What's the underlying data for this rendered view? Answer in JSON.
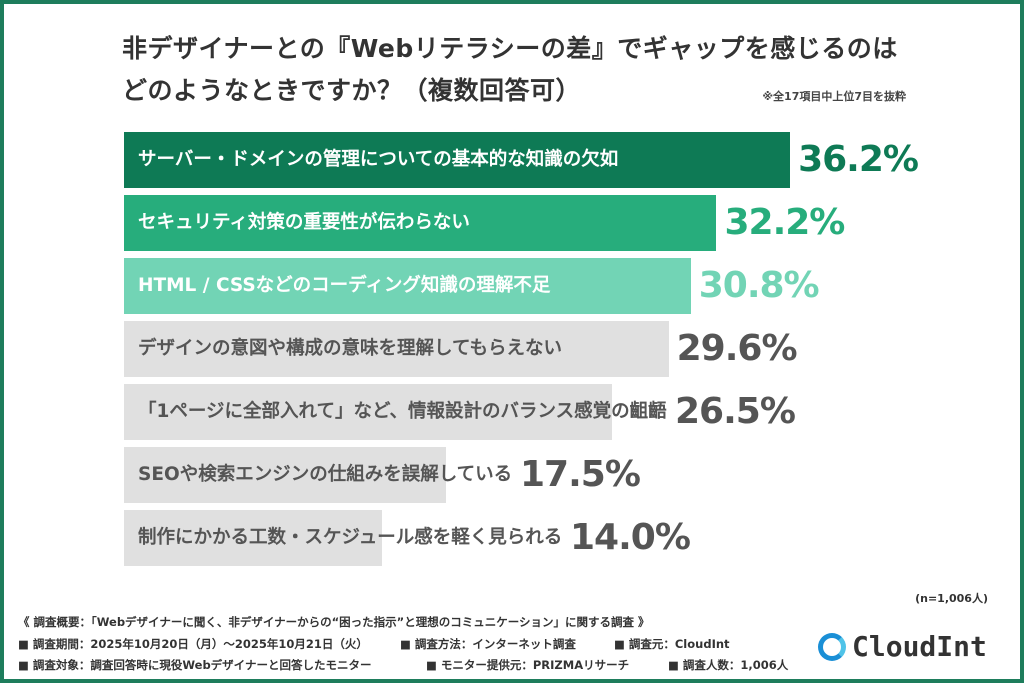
{
  "chart_data": {
    "type": "bar",
    "orientation": "horizontal",
    "title": "非デザイナーとの『Webリテラシーの差』でギャップを感じるのはどのようなときですか？（複数回答可）",
    "title_line1": "非デザイナーとの『Webリテラシーの差』でギャップを感じるのは",
    "title_line2": "どのようなときですか？（複数回答可）",
    "subtitle": "※全17項目中上位7目を抜粋",
    "unit": "%",
    "categories": [
      "サーバー・ドメインの管理についての基本的な知識の欠如",
      "セキュリティ対策の重要性が伝わらない",
      "HTML / CSSなどのコーディング知識の理解不足",
      "デザインの意図や構成の意味を理解してもらえない",
      "「1ページに全部入れて」など、情報設計のバランス感覚の齟齬",
      "SEOや検索エンジンの仕組みを誤解している",
      "制作にかかる工数・スケジュール感を軽く見られる"
    ],
    "values": [
      36.2,
      32.2,
      30.8,
      29.6,
      26.5,
      17.5,
      14.0
    ],
    "value_labels": [
      "36.2%",
      "32.2%",
      "30.8%",
      "29.6%",
      "26.5%",
      "17.5%",
      "14.0%"
    ],
    "bar_colors": [
      "#0e7a55",
      "#27ad7c",
      "#72d4b5",
      "#e0e0e0",
      "#e0e0e0",
      "#e0e0e0",
      "#e0e0e0"
    ],
    "label_colors": [
      "#ffffff",
      "#ffffff",
      "#ffffff",
      "#555555",
      "#555555",
      "#555555",
      "#555555"
    ],
    "value_colors": [
      "#0e7a55",
      "#27ad7c",
      "#72d4b5",
      "#555555",
      "#555555",
      "#555555",
      "#555555"
    ],
    "xlim": [
      0,
      40
    ],
    "grid": false
  },
  "sample": "(n=1,006人)",
  "footer": {
    "line1": "《 調査概要：「Webデザイナーに聞く、非デザイナーからの“困った指示”と理想のコミュニケーション」に関する調査 》",
    "line2": [
      "■ 調査期間：2025年10月20日（月）～2025年10月21日（火）",
      "■ 調査方法：インターネット調査",
      "■ 調査元：CloudInt"
    ],
    "line3": [
      "■ 調査対象：調査回答時に現役Webデザイナーと回答したモニター",
      "■ モニター提供元：PRIZMAリサーチ",
      "■ 調査人数：1,006人"
    ]
  },
  "logo": {
    "text": "CloudInt",
    "icon": "ring-logo-icon"
  },
  "frame_color": "#1e7d5c"
}
